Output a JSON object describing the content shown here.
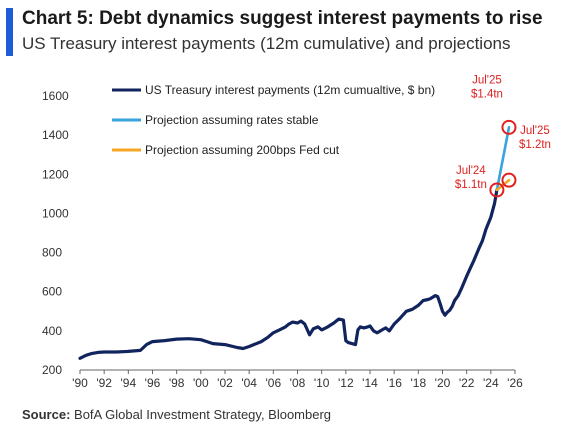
{
  "header": {
    "title": "Chart 5: Debt dynamics suggest interest payments to rise",
    "subtitle": "US Treasury interest payments (12m cumulative) and projections"
  },
  "footer": {
    "source_label": "Source:",
    "source_text": "BofA Global Investment Strategy, Bloomberg"
  },
  "colors": {
    "accent": "#1f5bd6",
    "history": "#12245e",
    "stable": "#3aa3dd",
    "cut": "#f5a623",
    "annotation": "#e0211f"
  },
  "chart_data": {
    "type": "line",
    "title": "Chart 5: Debt dynamics suggest interest payments to rise",
    "subtitle": "US Treasury interest payments (12m cumulative) and projections",
    "xlabel": "",
    "ylabel": "",
    "xlim": [
      1990,
      2026
    ],
    "ylim": [
      200,
      1600
    ],
    "x_ticks": [
      1990,
      1992,
      1994,
      1996,
      1998,
      2000,
      2002,
      2004,
      2006,
      2008,
      2010,
      2012,
      2014,
      2016,
      2018,
      2020,
      2022,
      2024,
      2026
    ],
    "x_tick_labels": [
      "'90",
      "'92",
      "'94",
      "'96",
      "'98",
      "'00",
      "'02",
      "'04",
      "'06",
      "'08",
      "'10",
      "'12",
      "'14",
      "'16",
      "'18",
      "'20",
      "'22",
      "'24",
      "'26"
    ],
    "y_ticks": [
      200,
      400,
      600,
      800,
      1000,
      1200,
      1400,
      1600
    ],
    "grid": false,
    "legend_position": "top-left",
    "series": [
      {
        "name": "US Treasury interest payments (12m cumualtive, $ bn)",
        "color": "#12245e",
        "x": [
          1990.0,
          1990.5,
          1991.0,
          1991.5,
          1992.0,
          1993.0,
          1994.0,
          1995.0,
          1995.5,
          1996.0,
          1997.0,
          1998.0,
          1999.0,
          2000.0,
          2000.5,
          2001.0,
          2002.0,
          2003.0,
          2003.5,
          2004.0,
          2005.0,
          2005.5,
          2006.0,
          2006.5,
          2007.0,
          2007.3,
          2007.6,
          2008.0,
          2008.3,
          2008.6,
          2009.0,
          2009.3,
          2009.7,
          2010.0,
          2010.5,
          2011.0,
          2011.4,
          2011.8,
          2012.0,
          2012.2,
          2012.5,
          2012.8,
          2013.0,
          2013.2,
          2013.5,
          2013.8,
          2014.0,
          2014.3,
          2014.6,
          2015.0,
          2015.3,
          2015.6,
          2016.0,
          2016.5,
          2017.0,
          2017.5,
          2018.0,
          2018.4,
          2018.8,
          2019.0,
          2019.4,
          2019.6,
          2019.8,
          2020.0,
          2020.2,
          2020.4,
          2020.6,
          2020.8,
          2021.0,
          2021.3,
          2021.6,
          2022.0,
          2022.3,
          2022.6,
          2023.0,
          2023.3,
          2023.6,
          2024.0,
          2024.3,
          2024.5
        ],
        "values": [
          260,
          275,
          285,
          290,
          292,
          292,
          295,
          300,
          330,
          345,
          350,
          358,
          360,
          355,
          345,
          335,
          330,
          315,
          310,
          320,
          345,
          365,
          390,
          405,
          420,
          435,
          445,
          440,
          450,
          435,
          380,
          410,
          420,
          405,
          420,
          440,
          460,
          455,
          350,
          340,
          335,
          330,
          405,
          420,
          415,
          420,
          425,
          400,
          390,
          405,
          415,
          400,
          435,
          465,
          500,
          510,
          530,
          555,
          560,
          565,
          580,
          575,
          540,
          500,
          480,
          495,
          505,
          525,
          555,
          580,
          620,
          680,
          720,
          760,
          820,
          860,
          920,
          980,
          1050,
          1120
        ]
      },
      {
        "name": "Projection assuming rates stable",
        "color": "#3aa3dd",
        "x": [
          2024.5,
          2025.5
        ],
        "values": [
          1120,
          1440
        ]
      },
      {
        "name": "Projection assuming 200bps Fed cut",
        "color": "#f5a623",
        "x": [
          2024.5,
          2025.5
        ],
        "values": [
          1120,
          1170
        ]
      }
    ],
    "annotations": [
      {
        "lines": [
          "Jul'24",
          "$1.1tn"
        ],
        "x": 2024.5,
        "y": 1120
      },
      {
        "lines": [
          "Jul'25",
          "$1.4tn"
        ],
        "x": 2025.5,
        "y": 1440
      },
      {
        "lines": [
          "Jul'25",
          "$1.2tn"
        ],
        "x": 2025.5,
        "y": 1170
      }
    ]
  }
}
